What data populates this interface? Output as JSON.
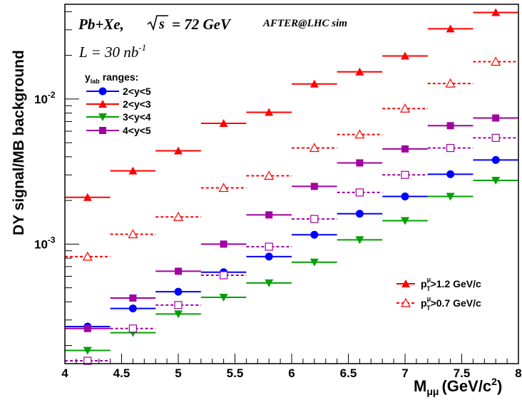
{
  "chart_data": {
    "type": "scatter",
    "xlabel": "M",
    "xlabel_sub": "μμ",
    "xlabel_unit": "(GeV/c",
    "xlabel_unit_sup": "2",
    "xlabel_unit_end": ")",
    "ylabel": "DY signal/MB background",
    "xlim": [
      4,
      8
    ],
    "ylim": [
      0.00015,
      0.045
    ],
    "yscale": "log",
    "x_ticks": [
      "4",
      "4.5",
      "5",
      "5.5",
      "6",
      "6.5",
      "7",
      "7.5",
      "8"
    ],
    "y_tick_major": [
      {
        "base": "10",
        "exp": "-3"
      },
      {
        "base": "10",
        "exp": "-2"
      }
    ],
    "annotations": {
      "collision": "Pb+Xe,",
      "energy": "= 72 GeV",
      "sim": "AFTER@LHC sim",
      "lumi": "L = 30 nb",
      "lumi_sup": "-1"
    },
    "legend_ranges": {
      "title": "y",
      "title_sub": "lab",
      "title_end": " ranges:",
      "entries": [
        "2<y<5",
        "2<y<3",
        "3<y<4",
        "4<y<5"
      ]
    },
    "legend_pt": {
      "entries": [
        {
          "pre": "p",
          "sup": "μ",
          "sub": "T",
          "post": ">1.2 GeV/c"
        },
        {
          "pre": "p",
          "sup": "μ",
          "sub": "T",
          "post": ">0.7 GeV/c"
        }
      ]
    },
    "bins": [
      [
        4.0,
        4.4
      ],
      [
        4.4,
        4.8
      ],
      [
        4.8,
        5.2
      ],
      [
        5.2,
        5.6
      ],
      [
        5.6,
        6.0
      ],
      [
        6.0,
        6.4
      ],
      [
        6.4,
        6.8
      ],
      [
        6.8,
        7.2
      ],
      [
        7.2,
        7.6
      ],
      [
        7.6,
        8.0
      ]
    ],
    "x": [
      4.2,
      4.6,
      5.0,
      5.4,
      5.8,
      6.2,
      6.6,
      7.0,
      7.4,
      7.8
    ],
    "series": [
      {
        "range": "2<y<5",
        "cut": "pT>1.2",
        "color": "#0000ff",
        "marker": "circle",
        "filled": true,
        "dashed": false,
        "values": [
          0.00027,
          0.00036,
          0.00047,
          0.00064,
          0.00082,
          0.00116,
          0.00162,
          0.00213,
          0.00303,
          0.0038
        ]
      },
      {
        "range": "2<y<3",
        "cut": "pT>1.2",
        "color": "#ff0000",
        "marker": "triangle-up",
        "filled": true,
        "dashed": false,
        "values": [
          0.0021,
          0.0032,
          0.0044,
          0.0068,
          0.0081,
          0.0127,
          0.0154,
          0.0198,
          0.0305,
          0.0395
        ]
      },
      {
        "range": "2<y<3",
        "cut": "pT>0.7",
        "color": "#ff0000",
        "marker": "triangle-up",
        "filled": false,
        "dashed": true,
        "values": [
          0.00082,
          0.00117,
          0.00154,
          0.00244,
          0.00296,
          0.0046,
          0.0057,
          0.0086,
          0.0128,
          0.0181
        ]
      },
      {
        "range": "3<y<4",
        "cut": "pT>1.2",
        "color": "#00a000",
        "marker": "triangle-down",
        "filled": true,
        "dashed": false,
        "values": [
          0.000185,
          0.000245,
          0.00033,
          0.00043,
          0.00054,
          0.00075,
          0.00107,
          0.00145,
          0.00213,
          0.00275
        ]
      },
      {
        "range": "4<y<5",
        "cut": "pT>1.2",
        "color": "#a000a0",
        "marker": "square",
        "filled": true,
        "dashed": false,
        "values": [
          0.000262,
          0.000425,
          0.00065,
          0.001,
          0.00159,
          0.0025,
          0.00363,
          0.00453,
          0.00655,
          0.0074
        ]
      },
      {
        "range": "4<y<5",
        "cut": "pT>0.7",
        "color": "#a000a0",
        "marker": "square",
        "filled": false,
        "dashed": true,
        "values": [
          0.000157,
          0.000262,
          0.00038,
          0.00061,
          0.00096,
          0.00149,
          0.00227,
          0.003,
          0.0046,
          0.0054
        ]
      }
    ]
  }
}
